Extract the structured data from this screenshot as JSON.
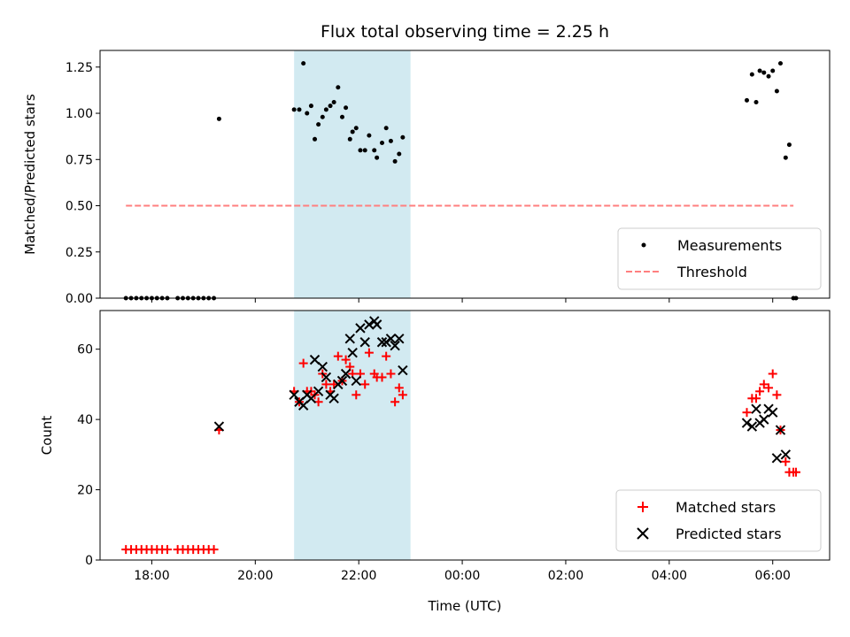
{
  "title": "Flux total observing time = 2.25 h",
  "colors": {
    "measurement": "#000000",
    "threshold": "#ff7f7f",
    "matched": "#ff0000",
    "predicted": "#000000",
    "shade": "#add8e6"
  },
  "chart_data": [
    {
      "type": "scatter",
      "ylabel": "Matched/Predicted stars",
      "xlabel": "",
      "xlim": [
        17.0,
        31.1
      ],
      "ylim": [
        0,
        1.34
      ],
      "yticks": [
        0,
        0.25,
        0.5,
        0.75,
        1.0,
        1.25
      ],
      "ytick_labels": [
        "0.00",
        "0.25",
        "0.50",
        "0.75",
        "1.00",
        "1.25"
      ],
      "shaded_interval": [
        20.75,
        23.0
      ],
      "threshold": {
        "name": "Threshold",
        "value": 0.5,
        "x_range": [
          17.5,
          30.4
        ]
      },
      "legend_position": "lower right",
      "series": [
        {
          "name": "Measurements",
          "marker": "dot",
          "points": [
            [
              17.5,
              0
            ],
            [
              17.6,
              0
            ],
            [
              17.7,
              0
            ],
            [
              17.8,
              0
            ],
            [
              17.9,
              0
            ],
            [
              18.0,
              0
            ],
            [
              18.1,
              0
            ],
            [
              18.2,
              0
            ],
            [
              18.3,
              0
            ],
            [
              18.5,
              0
            ],
            [
              18.6,
              0
            ],
            [
              18.7,
              0
            ],
            [
              18.8,
              0
            ],
            [
              18.9,
              0
            ],
            [
              19.0,
              0
            ],
            [
              19.1,
              0
            ],
            [
              19.2,
              0
            ],
            [
              19.3,
              0.97
            ],
            [
              20.75,
              1.02
            ],
            [
              20.85,
              1.02
            ],
            [
              20.93,
              1.27
            ],
            [
              21.0,
              1.0
            ],
            [
              21.08,
              1.04
            ],
            [
              21.15,
              0.86
            ],
            [
              21.22,
              0.94
            ],
            [
              21.3,
              0.98
            ],
            [
              21.37,
              1.02
            ],
            [
              21.45,
              1.04
            ],
            [
              21.52,
              1.06
            ],
            [
              21.6,
              1.14
            ],
            [
              21.68,
              0.98
            ],
            [
              21.75,
              1.03
            ],
            [
              21.83,
              0.86
            ],
            [
              21.88,
              0.9
            ],
            [
              21.95,
              0.92
            ],
            [
              22.03,
              0.8
            ],
            [
              22.12,
              0.8
            ],
            [
              22.2,
              0.88
            ],
            [
              22.3,
              0.8
            ],
            [
              22.35,
              0.76
            ],
            [
              22.45,
              0.84
            ],
            [
              22.53,
              0.92
            ],
            [
              22.62,
              0.85
            ],
            [
              22.7,
              0.74
            ],
            [
              22.78,
              0.78
            ],
            [
              22.85,
              0.87
            ],
            [
              29.5,
              1.07
            ],
            [
              29.6,
              1.21
            ],
            [
              29.68,
              1.06
            ],
            [
              29.75,
              1.23
            ],
            [
              29.83,
              1.22
            ],
            [
              29.92,
              1.2
            ],
            [
              30.0,
              1.23
            ],
            [
              30.08,
              1.12
            ],
            [
              30.15,
              1.27
            ],
            [
              30.25,
              0.76
            ],
            [
              30.32,
              0.83
            ],
            [
              30.4,
              0
            ],
            [
              30.45,
              0
            ]
          ]
        }
      ]
    },
    {
      "type": "scatter",
      "ylabel": "Count",
      "xlabel": "Time (UTC)",
      "xlim": [
        17.0,
        31.1
      ],
      "ylim": [
        0,
        71
      ],
      "yticks": [
        0,
        20,
        40,
        60
      ],
      "ytick_labels": [
        "0",
        "20",
        "40",
        "60"
      ],
      "xticks": [
        18,
        20,
        22,
        24,
        26,
        28,
        30
      ],
      "xtick_labels": [
        "18:00",
        "20:00",
        "22:00",
        "00:00",
        "02:00",
        "04:00",
        "06:00"
      ],
      "shaded_interval": [
        20.75,
        23.0
      ],
      "legend_position": "lower right",
      "series": [
        {
          "name": "Matched stars",
          "marker": "plus",
          "points": [
            [
              17.5,
              3
            ],
            [
              17.6,
              3
            ],
            [
              17.7,
              3
            ],
            [
              17.8,
              3
            ],
            [
              17.9,
              3
            ],
            [
              18.0,
              3
            ],
            [
              18.1,
              3
            ],
            [
              18.2,
              3
            ],
            [
              18.3,
              3
            ],
            [
              18.5,
              3
            ],
            [
              18.6,
              3
            ],
            [
              18.7,
              3
            ],
            [
              18.8,
              3
            ],
            [
              18.9,
              3
            ],
            [
              19.0,
              3
            ],
            [
              19.1,
              3
            ],
            [
              19.2,
              3
            ],
            [
              19.3,
              37
            ],
            [
              20.75,
              48
            ],
            [
              20.85,
              45
            ],
            [
              20.93,
              56
            ],
            [
              21.0,
              48
            ],
            [
              21.08,
              48
            ],
            [
              21.15,
              47
            ],
            [
              21.22,
              45
            ],
            [
              21.3,
              53
            ],
            [
              21.37,
              50
            ],
            [
              21.45,
              48
            ],
            [
              21.52,
              50
            ],
            [
              21.6,
              58
            ],
            [
              21.68,
              51
            ],
            [
              21.75,
              57
            ],
            [
              21.83,
              55
            ],
            [
              21.88,
              53
            ],
            [
              21.95,
              47
            ],
            [
              22.03,
              53
            ],
            [
              22.12,
              50
            ],
            [
              22.2,
              59
            ],
            [
              22.3,
              53
            ],
            [
              22.35,
              52
            ],
            [
              22.45,
              52
            ],
            [
              22.53,
              58
            ],
            [
              22.62,
              53
            ],
            [
              22.7,
              45
            ],
            [
              22.78,
              49
            ],
            [
              22.85,
              47
            ],
            [
              29.5,
              42
            ],
            [
              29.6,
              46
            ],
            [
              29.68,
              46
            ],
            [
              29.75,
              48
            ],
            [
              29.83,
              50
            ],
            [
              29.92,
              49
            ],
            [
              30.0,
              53
            ],
            [
              30.08,
              47
            ],
            [
              30.15,
              37
            ],
            [
              30.25,
              28
            ],
            [
              30.32,
              25
            ],
            [
              30.4,
              25
            ],
            [
              30.45,
              25
            ]
          ]
        },
        {
          "name": "Predicted stars",
          "marker": "cross",
          "points": [
            [
              19.3,
              38
            ],
            [
              20.75,
              47
            ],
            [
              20.85,
              45
            ],
            [
              20.93,
              44
            ],
            [
              21.0,
              47
            ],
            [
              21.08,
              46
            ],
            [
              21.15,
              57
            ],
            [
              21.22,
              48
            ],
            [
              21.3,
              55
            ],
            [
              21.37,
              52
            ],
            [
              21.45,
              47
            ],
            [
              21.52,
              46
            ],
            [
              21.6,
              50
            ],
            [
              21.68,
              51
            ],
            [
              21.75,
              53
            ],
            [
              21.83,
              63
            ],
            [
              21.88,
              59
            ],
            [
              21.95,
              51
            ],
            [
              22.03,
              66
            ],
            [
              22.12,
              62
            ],
            [
              22.2,
              67
            ],
            [
              22.3,
              68
            ],
            [
              22.35,
              67
            ],
            [
              22.45,
              62
            ],
            [
              22.53,
              62
            ],
            [
              22.62,
              63
            ],
            [
              22.7,
              61
            ],
            [
              22.78,
              63
            ],
            [
              22.85,
              54
            ],
            [
              29.5,
              39
            ],
            [
              29.6,
              38
            ],
            [
              29.68,
              43
            ],
            [
              29.75,
              39
            ],
            [
              29.83,
              40
            ],
            [
              29.92,
              43
            ],
            [
              30.0,
              42
            ],
            [
              30.08,
              29
            ],
            [
              30.15,
              37
            ],
            [
              30.25,
              30
            ]
          ]
        }
      ]
    }
  ]
}
